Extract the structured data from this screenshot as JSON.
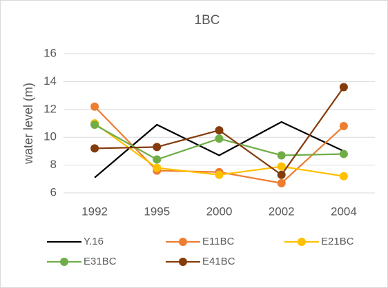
{
  "chart_data": {
    "type": "line",
    "title": "1BC",
    "y_label": "water level (m)",
    "categories": [
      "1992",
      "1995",
      "2000",
      "2002",
      "2004"
    ],
    "series": [
      {
        "name": "Y.16",
        "color": "#000000",
        "markers": false,
        "values": [
          7.1,
          10.9,
          8.7,
          11.1,
          9.0
        ]
      },
      {
        "name": "E11BC",
        "color": "#ed7d31",
        "markers": true,
        "values": [
          12.2,
          7.6,
          7.5,
          6.7,
          10.8
        ]
      },
      {
        "name": "E21BC",
        "color": "#ffc000",
        "markers": true,
        "values": [
          11.0,
          7.8,
          7.3,
          7.9,
          7.2
        ]
      },
      {
        "name": "E31BC",
        "color": "#70ad47",
        "markers": true,
        "values": [
          10.9,
          8.4,
          9.9,
          8.7,
          8.8
        ]
      },
      {
        "name": "E41BC",
        "color": "#843c0c",
        "markers": true,
        "values": [
          9.2,
          9.3,
          10.5,
          7.3,
          13.6
        ]
      }
    ],
    "ylim": [
      6,
      16
    ],
    "yticks": [
      6,
      8,
      10,
      12,
      14,
      16
    ],
    "grid": true
  }
}
